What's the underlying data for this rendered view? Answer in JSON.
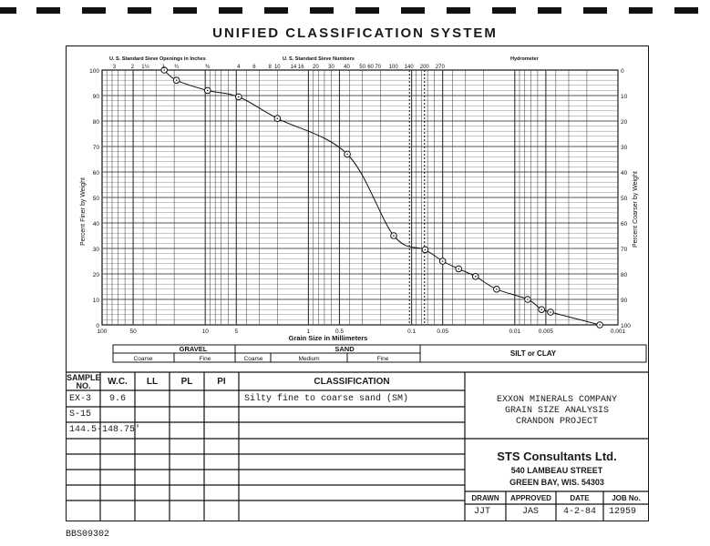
{
  "title": "UNIFIED CLASSIFICATION SYSTEM",
  "chart_labels": {
    "sieve_inches_title": "U. S. Standard Sieve Openings in Inches",
    "sieve_numbers_title": "U. S. Standard Sieve Numbers",
    "hydrometer_title": "Hydrometer",
    "y_left_label": "Percent Finer by Weight",
    "y_right_label": "Percent Coarser by Weight",
    "x_label": "Grain Size in Millimeters",
    "sieve_inch_ticks": [
      "3",
      "2",
      "1½",
      "1",
      "¾",
      "⅜"
    ],
    "sieve_number_ticks": [
      "4",
      "6",
      "8",
      "10",
      "14",
      "16",
      "20",
      "30",
      "40",
      "50",
      "60",
      "70",
      "100",
      "140",
      "200",
      "270"
    ],
    "x_tick_labels": [
      "100",
      "50",
      "10",
      "5",
      "1",
      "0.5",
      "0.1",
      "0.05",
      "0.01",
      "0.005",
      "0.001"
    ],
    "y_left_ticks": [
      "0",
      "10",
      "20",
      "30",
      "40",
      "50",
      "60",
      "70",
      "80",
      "90",
      "100"
    ],
    "y_right_ticks": [
      "100",
      "90",
      "80",
      "70",
      "60",
      "50",
      "40",
      "30",
      "20",
      "10",
      "0"
    ]
  },
  "classification_bar": {
    "gravel": "GRAVEL",
    "gravel_coarse": "Coarse",
    "gravel_fine": "Fine",
    "sand": "SAND",
    "sand_coarse": "Coarse",
    "sand_medium": "Medium",
    "sand_fine": "Fine",
    "silt_clay": "SILT or CLAY"
  },
  "table": {
    "headers": {
      "sample_no": "SAMPLE NO.",
      "wc": "W.C.",
      "ll": "LL",
      "pl": "PL",
      "pi": "PI",
      "classification": "CLASSIFICATION"
    },
    "rows": [
      {
        "sample": "EX-3",
        "wc": "9.6",
        "classification": "Silty fine to coarse sand (SM)"
      },
      {
        "sample": "S-15",
        "wc": "",
        "classification": ""
      },
      {
        "sample": "144.5-",
        "wc": "148.75'",
        "classification": ""
      }
    ]
  },
  "project": {
    "line1": "EXXON MINERALS COMPANY",
    "line2": "GRAIN SIZE ANALYSIS",
    "line3": "CRANDON PROJECT"
  },
  "consultant": {
    "name": "STS Consultants Ltd.",
    "street": "540 LAMBEAU STREET",
    "city": "GREEN BAY, WIS. 54303"
  },
  "signoff": {
    "drawn_label": "DRAWN",
    "approved_label": "APPROVED",
    "date_label": "DATE",
    "job_label": "JOB No.",
    "drawn": "JJT",
    "approved": "JAS",
    "date": "4-2-84",
    "job": "12959"
  },
  "footer_code": "BBS09302",
  "chart_data": {
    "type": "line",
    "xscale": "log",
    "xlim": [
      100,
      0.001
    ],
    "ylim": [
      0,
      100
    ],
    "xlabel": "Grain Size in Millimeters",
    "ylabel": "Percent Finer by Weight",
    "points": [
      {
        "x": 25,
        "y": 100
      },
      {
        "x": 19,
        "y": 96
      },
      {
        "x": 9.5,
        "y": 92
      },
      {
        "x": 4.75,
        "y": 89.5
      },
      {
        "x": 2.0,
        "y": 81
      },
      {
        "x": 0.42,
        "y": 67
      },
      {
        "x": 0.149,
        "y": 35
      },
      {
        "x": 0.074,
        "y": 29.5
      },
      {
        "x": 0.05,
        "y": 25
      },
      {
        "x": 0.035,
        "y": 22
      },
      {
        "x": 0.024,
        "y": 19
      },
      {
        "x": 0.015,
        "y": 14
      },
      {
        "x": 0.0075,
        "y": 10
      },
      {
        "x": 0.0055,
        "y": 6
      },
      {
        "x": 0.0045,
        "y": 5
      },
      {
        "x": 0.0015,
        "y": 0
      }
    ]
  }
}
